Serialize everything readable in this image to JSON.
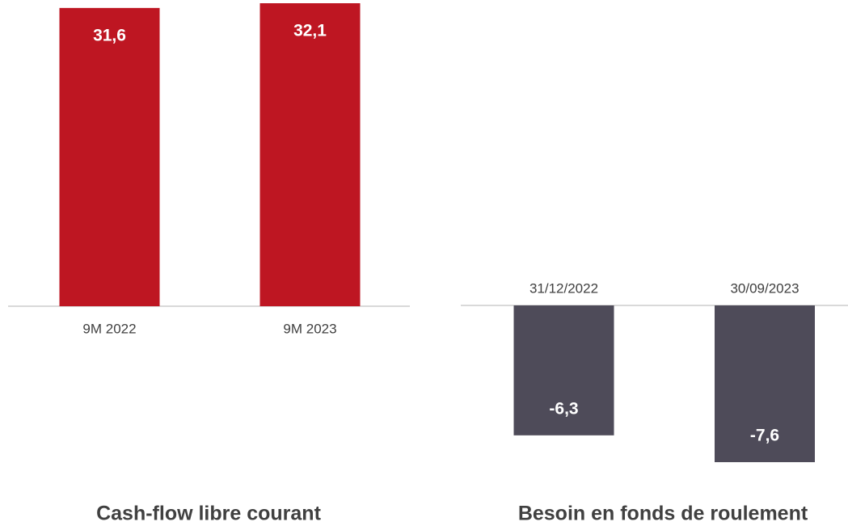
{
  "chart_data": [
    {
      "type": "bar",
      "title": "Cash-flow libre courant",
      "categories": [
        "9M 2022",
        "9M 2023"
      ],
      "values": [
        31.6,
        32.1
      ],
      "value_labels": [
        "31,6",
        "32,1"
      ],
      "color": "#be1622"
    },
    {
      "type": "bar",
      "title": "Besoin en fonds de roulement",
      "categories": [
        "31/12/2022",
        "30/09/2023"
      ],
      "values": [
        -6.3,
        -7.6
      ],
      "value_labels": [
        "-6,3",
        "-7,6"
      ],
      "color": "#4e4b59"
    }
  ]
}
